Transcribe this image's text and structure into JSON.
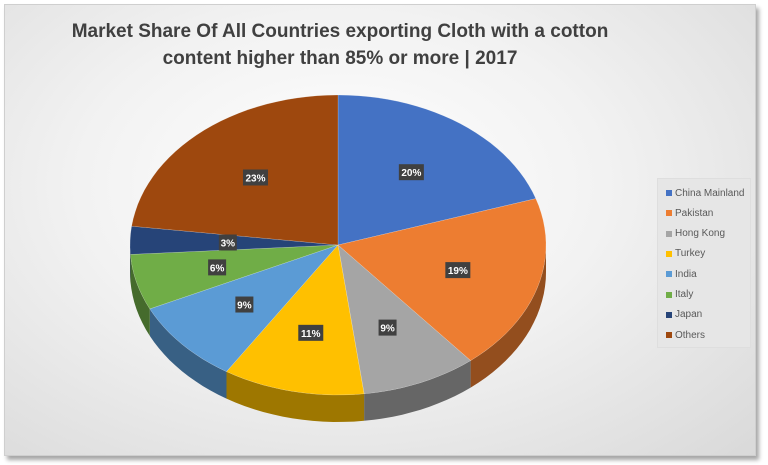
{
  "chart_data": {
    "type": "pie",
    "style": "3d",
    "title": "Market Share Of All Countries exporting Cloth with a cotton content higher than 85% or more | 2017",
    "title_lines": [
      "Market Share Of All Countries exporting Cloth with a cotton",
      "content higher than 85% or more | 2017"
    ],
    "legend_position": "right",
    "categories": [
      "China Mainland",
      "Pakistan",
      "Hong Kong",
      "Turkey",
      "India",
      "Italy",
      "Japan",
      "Others"
    ],
    "values": [
      20,
      19,
      9,
      11,
      9,
      6,
      3,
      23
    ],
    "labels": [
      "20%",
      "19%",
      "9%",
      "11%",
      "9%",
      "6%",
      "3%",
      "23%"
    ],
    "colors": [
      "#4472C4",
      "#ED7D31",
      "#A5A5A5",
      "#FFC000",
      "#5B9BD5",
      "#70AD47",
      "#264478",
      "#9E480E"
    ]
  }
}
